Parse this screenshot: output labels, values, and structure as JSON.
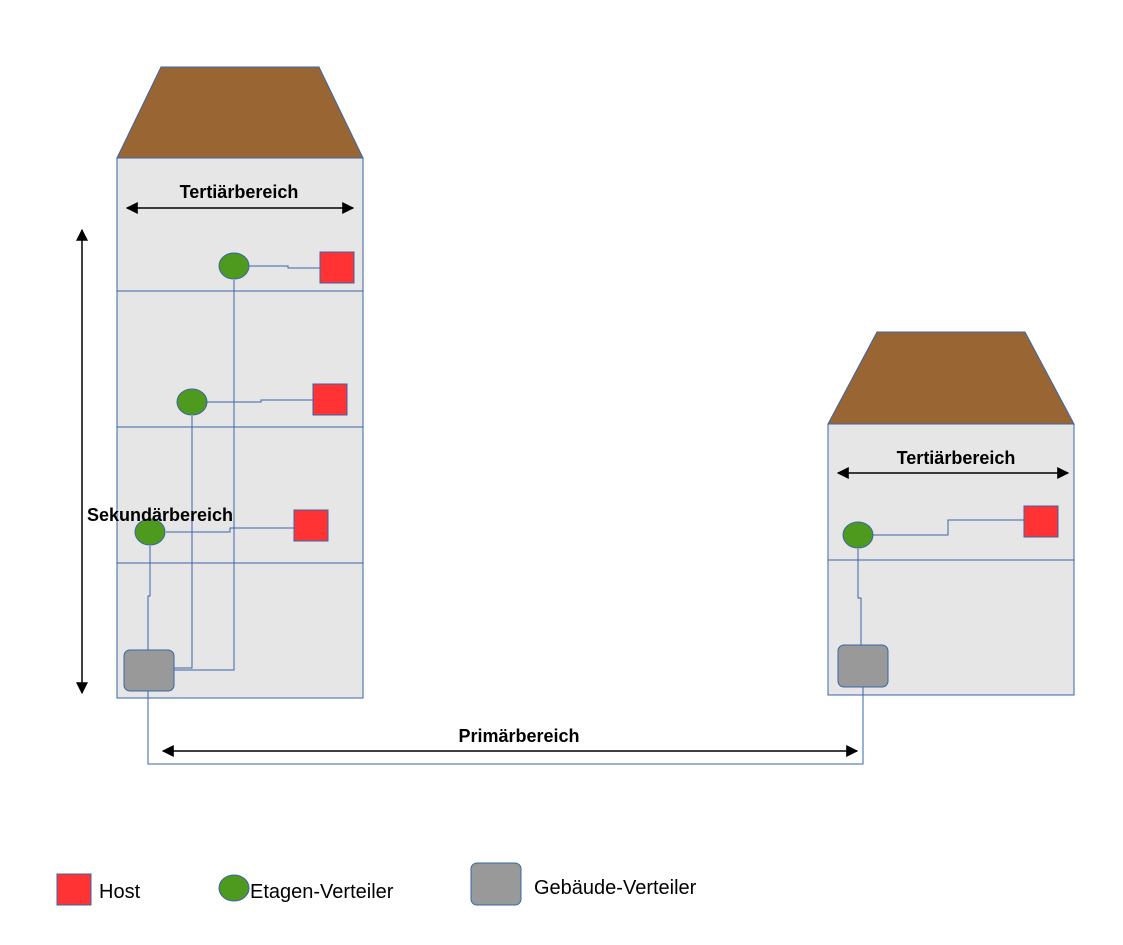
{
  "labels": {
    "tertiary_left": "Tertiärbereich",
    "tertiary_right": "Tertiärbereich",
    "secondary": "Sekundärbereich",
    "primary": "Primärbereich"
  },
  "legend": {
    "host": "Host",
    "floor_distributor": "Etagen-Verteiler",
    "building_distributor": "Gebäude-Verteiler"
  },
  "colors": {
    "roof": "#996633",
    "building_fill": "#e6e6e6",
    "outline": "#3a64a8",
    "host": "#ff3333",
    "floor_distributor": "#4d9a1f",
    "building_distributor": "#999999"
  }
}
